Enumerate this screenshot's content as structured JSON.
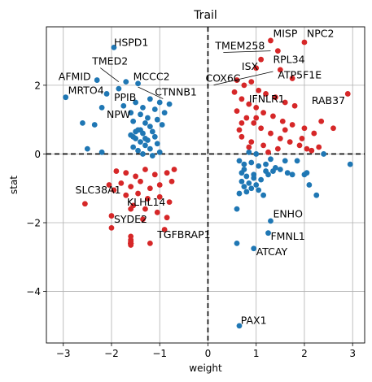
{
  "chart_data": {
    "type": "scatter",
    "title": "Trail",
    "xlabel": "weight",
    "ylabel": "stat",
    "xlim": [
      -3.35,
      3.25
    ],
    "ylim": [
      -5.5,
      3.7
    ],
    "x_ticks": [
      -3,
      -2,
      -1,
      0,
      1,
      2,
      3
    ],
    "x_tick_labels": [
      "−3",
      "−2",
      "−1",
      "0",
      "1",
      "2",
      "3"
    ],
    "y_ticks": [
      -4,
      -2,
      0,
      2
    ],
    "y_tick_labels": [
      "−4",
      "−2",
      "0",
      "2"
    ],
    "grid": true,
    "reference_lines": {
      "x": 0,
      "y": 0,
      "style": "dashed",
      "color": "#000000"
    },
    "colors": {
      "blue": "#1f77b4",
      "red": "#d62728"
    },
    "series": [
      {
        "color": "#1f77b4",
        "points": [
          [
            -2.95,
            1.65
          ],
          [
            -1.95,
            3.1
          ],
          [
            -2.3,
            2.15
          ],
          [
            -1.7,
            2.1
          ],
          [
            -1.45,
            2.05
          ],
          [
            -2.1,
            1.75
          ],
          [
            -1.85,
            1.9
          ],
          [
            -2.2,
            1.35
          ],
          [
            -1.5,
            1.5
          ],
          [
            -1.75,
            1.4
          ],
          [
            -1.2,
            1.6
          ],
          [
            -1.0,
            1.5
          ],
          [
            -0.8,
            1.45
          ],
          [
            -1.35,
            1.35
          ],
          [
            -1.1,
            1.3
          ],
          [
            -0.9,
            1.2
          ],
          [
            -1.6,
            1.2
          ],
          [
            -1.4,
            1.15
          ],
          [
            -1.25,
            1.05
          ],
          [
            -1.05,
            1.0
          ],
          [
            -1.55,
            0.95
          ],
          [
            -1.3,
            0.9
          ],
          [
            -0.95,
            0.85
          ],
          [
            -1.2,
            0.8
          ],
          [
            -1.45,
            0.7
          ],
          [
            -1.15,
            0.65
          ],
          [
            -1.35,
            0.6
          ],
          [
            -1.6,
            0.55
          ],
          [
            -1.1,
            0.5
          ],
          [
            -1.5,
            0.45
          ],
          [
            -1.25,
            0.4
          ],
          [
            -1.4,
            0.35
          ],
          [
            -1.05,
            0.3
          ],
          [
            -1.3,
            0.25
          ],
          [
            -1.55,
            0.2
          ],
          [
            -1.2,
            0.15
          ],
          [
            -1.45,
            0.1
          ],
          [
            -1.0,
            0.05
          ],
          [
            -1.35,
            0.0
          ],
          [
            -1.15,
            -0.05
          ],
          [
            -2.6,
            0.9
          ],
          [
            -2.35,
            0.85
          ],
          [
            -2.5,
            0.15
          ],
          [
            -2.2,
            0.05
          ],
          [
            -1.5,
            0.65
          ],
          [
            -1.4,
            0.7
          ],
          [
            -1.55,
            0.5
          ],
          [
            -1.3,
            0.45
          ],
          [
            0.65,
            -0.2
          ],
          [
            0.75,
            -0.3
          ],
          [
            0.9,
            -0.25
          ],
          [
            1.05,
            -0.35
          ],
          [
            1.2,
            -0.3
          ],
          [
            1.35,
            -0.5
          ],
          [
            1.5,
            -0.45
          ],
          [
            1.65,
            -0.55
          ],
          [
            0.7,
            -0.55
          ],
          [
            0.8,
            -0.65
          ],
          [
            0.95,
            -0.7
          ],
          [
            1.1,
            -0.75
          ],
          [
            0.7,
            -0.8
          ],
          [
            0.85,
            -0.85
          ],
          [
            1.0,
            -0.9
          ],
          [
            0.75,
            -0.95
          ],
          [
            0.9,
            -1.0
          ],
          [
            1.05,
            -1.05
          ],
          [
            0.8,
            -1.1
          ],
          [
            0.95,
            -0.6
          ],
          [
            0.65,
            -1.15
          ],
          [
            1.15,
            -1.2
          ],
          [
            0.75,
            -0.45
          ],
          [
            1.25,
            -0.6
          ],
          [
            1.4,
            -0.4
          ],
          [
            1.75,
            -0.6
          ],
          [
            1.85,
            -0.2
          ],
          [
            2.0,
            -0.6
          ],
          [
            2.1,
            -0.9
          ],
          [
            2.25,
            -1.2
          ],
          [
            0.85,
            0.05
          ],
          [
            1.0,
            0.0
          ],
          [
            1.3,
            -0.15
          ],
          [
            2.4,
            0.0
          ],
          [
            2.95,
            -0.3
          ],
          [
            2.05,
            -0.55
          ],
          [
            1.6,
            -0.2
          ],
          [
            1.2,
            -0.5
          ],
          [
            0.6,
            -2.6
          ],
          [
            0.95,
            -2.75
          ],
          [
            1.25,
            -2.3
          ],
          [
            1.3,
            -1.95
          ],
          [
            0.65,
            -5.0
          ],
          [
            0.6,
            -1.6
          ]
        ]
      },
      {
        "color": "#d62728",
        "points": [
          [
            2.0,
            3.25
          ],
          [
            1.3,
            3.3
          ],
          [
            1.45,
            3.0
          ],
          [
            1.1,
            2.75
          ],
          [
            1.0,
            2.5
          ],
          [
            1.5,
            2.45
          ],
          [
            1.75,
            2.2
          ],
          [
            2.9,
            1.75
          ],
          [
            0.6,
            2.15
          ],
          [
            0.75,
            2.0
          ],
          [
            0.9,
            2.1
          ],
          [
            1.05,
            1.85
          ],
          [
            1.2,
            1.75
          ],
          [
            1.4,
            1.65
          ],
          [
            1.6,
            1.5
          ],
          [
            1.8,
            1.4
          ],
          [
            0.55,
            1.8
          ],
          [
            0.7,
            1.6
          ],
          [
            0.85,
            1.45
          ],
          [
            1.0,
            1.35
          ],
          [
            1.15,
            1.2
          ],
          [
            1.35,
            1.1
          ],
          [
            1.55,
            0.95
          ],
          [
            1.75,
            0.85
          ],
          [
            2.0,
            0.75
          ],
          [
            2.2,
            0.6
          ],
          [
            2.35,
            0.95
          ],
          [
            2.6,
            0.75
          ],
          [
            0.6,
            1.25
          ],
          [
            0.8,
            1.05
          ],
          [
            0.95,
            0.9
          ],
          [
            1.1,
            0.75
          ],
          [
            1.3,
            0.6
          ],
          [
            1.5,
            0.45
          ],
          [
            1.7,
            0.35
          ],
          [
            1.9,
            0.25
          ],
          [
            2.05,
            0.15
          ],
          [
            0.7,
            0.5
          ],
          [
            0.9,
            0.35
          ],
          [
            1.15,
            0.25
          ],
          [
            1.45,
            0.15
          ],
          [
            0.65,
            0.7
          ],
          [
            0.85,
            0.2
          ],
          [
            2.15,
            0.1
          ],
          [
            1.25,
            0.05
          ],
          [
            0.7,
            0.9
          ],
          [
            1.0,
            1.05
          ],
          [
            1.6,
            0.7
          ],
          [
            1.95,
            0.45
          ],
          [
            2.3,
            0.2
          ],
          [
            -1.9,
            -0.5
          ],
          [
            -1.7,
            -0.55
          ],
          [
            -1.5,
            -0.65
          ],
          [
            -1.3,
            -0.45
          ],
          [
            -1.1,
            -0.6
          ],
          [
            -0.85,
            -0.55
          ],
          [
            -1.8,
            -0.85
          ],
          [
            -1.6,
            -0.95
          ],
          [
            -1.4,
            -0.8
          ],
          [
            -1.2,
            -1.0
          ],
          [
            -1.0,
            -0.9
          ],
          [
            -0.75,
            -0.8
          ],
          [
            -1.7,
            -1.2
          ],
          [
            -1.45,
            -1.15
          ],
          [
            -1.25,
            -1.3
          ],
          [
            -1.0,
            -1.25
          ],
          [
            -0.8,
            -1.4
          ],
          [
            -1.55,
            -1.5
          ],
          [
            -1.3,
            -1.6
          ],
          [
            -1.05,
            -1.7
          ],
          [
            -0.85,
            -1.85
          ],
          [
            -1.35,
            -1.9
          ],
          [
            -0.9,
            -2.2
          ],
          [
            -2.55,
            -1.45
          ],
          [
            -1.6,
            -1.6
          ],
          [
            -2.0,
            -2.15
          ],
          [
            -1.6,
            -2.4
          ],
          [
            -1.6,
            -2.5
          ],
          [
            -1.6,
            -2.55
          ],
          [
            -1.6,
            -2.6
          ],
          [
            -1.6,
            -2.65
          ],
          [
            -1.6,
            -2.62
          ],
          [
            -1.6,
            -2.6
          ],
          [
            -1.6,
            -2.6
          ],
          [
            -1.6,
            -2.6
          ],
          [
            -1.6,
            -2.6
          ],
          [
            -1.6,
            -2.6
          ],
          [
            -1.6,
            -2.6
          ],
          [
            -1.6,
            -2.6
          ],
          [
            -1.6,
            -2.6
          ],
          [
            -1.6,
            -2.6
          ],
          [
            -1.6,
            -2.6
          ],
          [
            -1.6,
            -2.6
          ],
          [
            -1.6,
            -2.6
          ],
          [
            -1.6,
            -2.6
          ],
          [
            -1.6,
            -2.6
          ],
          [
            -1.6,
            -2.6
          ],
          [
            -1.6,
            -2.6
          ],
          [
            -1.6,
            -2.6
          ],
          [
            -1.6,
            -2.6
          ],
          [
            -1.6,
            -2.6
          ],
          [
            -1.6,
            -2.6
          ],
          [
            -2.0,
            -1.8
          ],
          [
            -1.2,
            -2.6
          ],
          [
            -2.05,
            -0.9
          ],
          [
            -1.95,
            -1.05
          ],
          [
            -0.7,
            -0.45
          ]
        ]
      }
    ],
    "annotations": [
      {
        "text": "HSPD1",
        "x": -1.95,
        "y": 3.1,
        "tx": -1.95,
        "ty": 3.15,
        "line": false
      },
      {
        "text": "AFMID",
        "x": -2.3,
        "y": 2.15,
        "tx": -3.1,
        "ty": 2.15,
        "line": false
      },
      {
        "text": "TMED2",
        "x": -1.85,
        "y": 2.1,
        "tx": -2.4,
        "ty": 2.6,
        "line": true
      },
      {
        "text": "MCCC2",
        "x": -1.45,
        "y": 2.05,
        "tx": -1.55,
        "ty": 2.15,
        "line": false
      },
      {
        "text": "MRTO4",
        "x": -2.95,
        "y": 1.65,
        "tx": -2.9,
        "ty": 1.75,
        "line": false
      },
      {
        "text": "PPIB",
        "x": -1.75,
        "y": 1.95,
        "tx": -1.95,
        "ty": 1.55,
        "line": false
      },
      {
        "text": "CTNNB1",
        "x": -1.45,
        "y": 1.95,
        "tx": -1.1,
        "ty": 1.7,
        "line": true
      },
      {
        "text": "NPW",
        "x": -1.5,
        "y": 1.15,
        "tx": -2.1,
        "ty": 1.05,
        "line": false
      },
      {
        "text": "SLC38A1",
        "x": -2.55,
        "y": -1.45,
        "tx": -2.75,
        "ty": -1.15,
        "line": false
      },
      {
        "text": "KLHL14",
        "x": -1.75,
        "y": -1.6,
        "tx": -1.68,
        "ty": -1.5,
        "line": false
      },
      {
        "text": "SYDE2",
        "x": -2.0,
        "y": -2.15,
        "tx": -1.95,
        "ty": -2.0,
        "line": false
      },
      {
        "text": "TGFBRAP1",
        "x": -1.2,
        "y": -2.6,
        "tx": -1.05,
        "ty": -2.45,
        "line": false
      },
      {
        "text": "MISP",
        "x": 1.3,
        "y": 3.3,
        "tx": 1.35,
        "ty": 3.4,
        "line": false
      },
      {
        "text": "NPC2",
        "x": 2.0,
        "y": 3.25,
        "tx": 2.05,
        "ty": 3.4,
        "line": false
      },
      {
        "text": "TMEM258",
        "x": 1.3,
        "y": 3.0,
        "tx": 0.15,
        "ty": 3.05,
        "line": true
      },
      {
        "text": "RPL34",
        "x": 1.3,
        "y": 2.75,
        "tx": 1.35,
        "ty": 2.65,
        "line": false
      },
      {
        "text": "ISX",
        "x": 1.1,
        "y": 2.5,
        "tx": 0.7,
        "ty": 2.45,
        "line": false
      },
      {
        "text": "ATP5F1E",
        "x": 1.4,
        "y": 2.2,
        "tx": 1.45,
        "ty": 2.2,
        "line": false
      },
      {
        "text": "COX6C",
        "x": 1.35,
        "y": 2.4,
        "tx": -0.05,
        "ty": 2.1,
        "line": true
      },
      {
        "text": "IFNLR1",
        "x": 0.9,
        "y": 1.55,
        "tx": 0.85,
        "ty": 1.5,
        "line": false
      },
      {
        "text": "RAB37",
        "x": 2.9,
        "y": 1.75,
        "tx": 2.15,
        "ty": 1.45,
        "line": false
      },
      {
        "text": "ENHO",
        "x": 1.3,
        "y": -1.95,
        "tx": 1.35,
        "ty": -1.85,
        "line": false
      },
      {
        "text": "FMNL1",
        "x": 1.25,
        "y": -2.3,
        "tx": 1.3,
        "ty": -2.5,
        "line": false
      },
      {
        "text": "ATCAY",
        "x": 0.95,
        "y": -2.75,
        "tx": 1.0,
        "ty": -2.95,
        "line": false
      },
      {
        "text": "PAX1",
        "x": 0.65,
        "y": -5.0,
        "tx": 0.68,
        "ty": -4.95,
        "line": false
      }
    ]
  }
}
